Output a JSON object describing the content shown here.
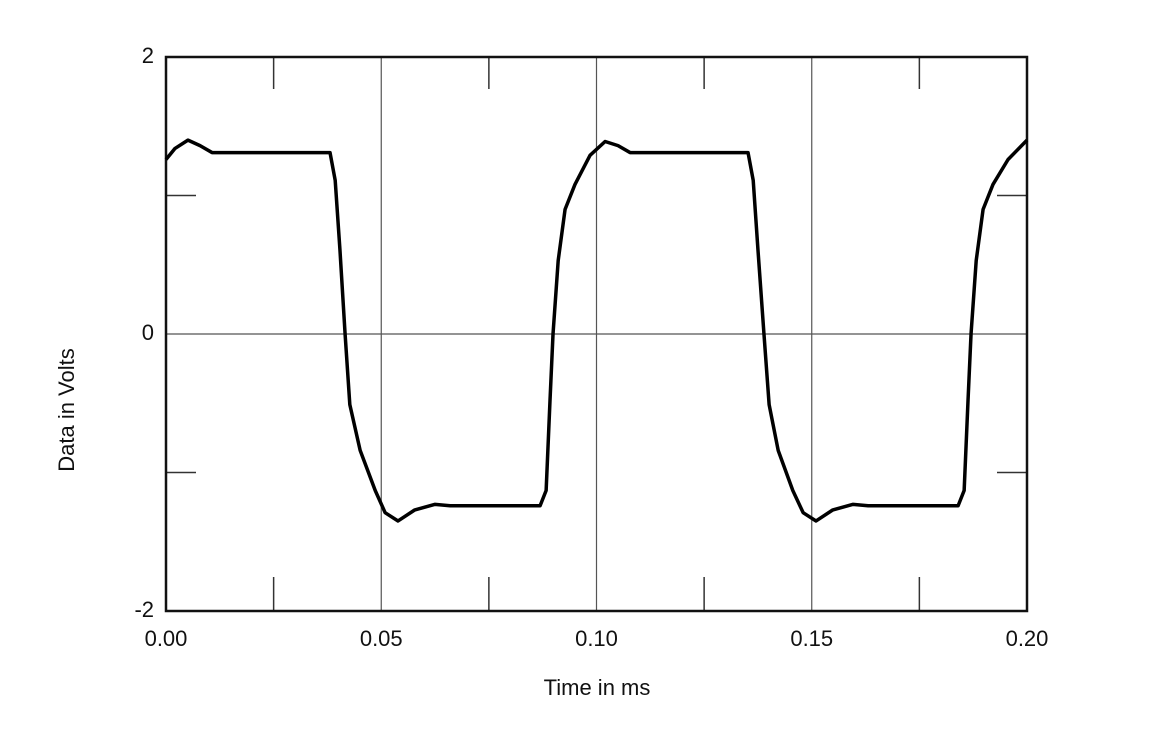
{
  "chart_data": {
    "type": "line",
    "x_label": "Time in ms",
    "y_label": "Data in Volts",
    "xlim": [
      0,
      0.2
    ],
    "ylim": [
      -2,
      2
    ],
    "xticks": [
      {
        "value": 0,
        "label": "0.00"
      },
      {
        "value": 0.05,
        "label": "0.05"
      },
      {
        "value": 0.1,
        "label": "0.10"
      },
      {
        "value": 0.15,
        "label": "0.15"
      },
      {
        "value": 0.2,
        "label": "0.20"
      }
    ],
    "yticks": [
      -2,
      0,
      2
    ],
    "minor_xticks": [
      0.025,
      0.075,
      0.125,
      0.175
    ],
    "minor_yticks": [
      -1,
      1
    ],
    "grid": true,
    "series": [
      {
        "color": "#000000",
        "x": [
          0,
          0.0021,
          0.0051,
          0.0079,
          0.0107,
          0.0381,
          0.0393,
          0.0404,
          0.0416,
          0.0427,
          0.0451,
          0.0486,
          0.0509,
          0.0539,
          0.0578,
          0.0625,
          0.066,
          0.0869,
          0.0883,
          0.0892,
          0.0899,
          0.0911,
          0.0927,
          0.095,
          0.0985,
          0.102,
          0.105,
          0.1078,
          0.1352,
          0.1364,
          0.1375,
          0.1389,
          0.1401,
          0.1422,
          0.1456,
          0.148,
          0.151,
          0.1549,
          0.1596,
          0.1631,
          0.184,
          0.1854,
          0.1863,
          0.187,
          0.1882,
          0.1898,
          0.1921,
          0.1956,
          0.2
        ],
        "values": [
          1.26,
          1.34,
          1.4,
          1.36,
          1.31,
          1.31,
          1.11,
          0.61,
          0,
          -0.51,
          -0.84,
          -1.13,
          -1.29,
          -1.35,
          -1.27,
          -1.23,
          -1.24,
          -1.24,
          -1.13,
          -0.48,
          0,
          0.53,
          0.9,
          1.08,
          1.29,
          1.39,
          1.36,
          1.31,
          1.31,
          1.11,
          0.61,
          0,
          -0.51,
          -0.84,
          -1.13,
          -1.29,
          -1.35,
          -1.27,
          -1.23,
          -1.24,
          -1.24,
          -1.13,
          -0.48,
          0,
          0.53,
          0.9,
          1.08,
          1.26,
          1.4
        ]
      }
    ]
  }
}
